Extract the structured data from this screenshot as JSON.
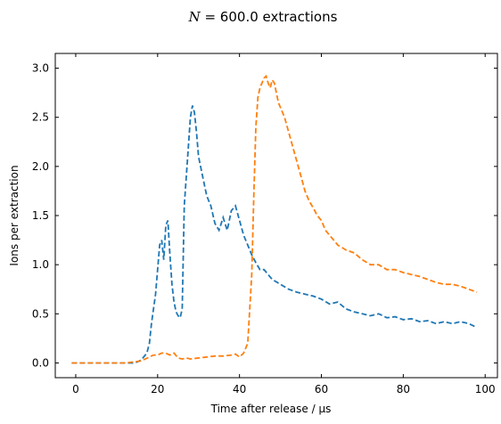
{
  "chart_data": {
    "type": "line",
    "title_math": "N",
    "title_rest": " = 600.0 extractions",
    "xlabel": "Time after release / µs",
    "ylabel": "Ions per extraction",
    "xlim": [
      -5,
      103
    ],
    "ylim": [
      -0.15,
      3.15
    ],
    "x_ticks": [
      0,
      20,
      40,
      60,
      80,
      100
    ],
    "y_ticks": [
      0.0,
      0.5,
      1.0,
      1.5,
      2.0,
      2.5,
      3.0
    ],
    "x_tick_labels": [
      "0",
      "20",
      "40",
      "60",
      "80",
      "100"
    ],
    "y_tick_labels": [
      "0.0",
      "0.5",
      "1.0",
      "1.5",
      "2.0",
      "2.5",
      "3.0"
    ],
    "series": [
      {
        "color": "#1f77b4",
        "style": "dashed",
        "x": [
          -1,
          2,
          4,
          6,
          8,
          10,
          12,
          14,
          15,
          16,
          17,
          17.5,
          18,
          18.5,
          19,
          19.5,
          20,
          20.5,
          21,
          21.5,
          22,
          22.5,
          23,
          23.5,
          24,
          24.5,
          25,
          25.5,
          26,
          26.5,
          27,
          27.5,
          28,
          28.5,
          29,
          29.5,
          30,
          31,
          32,
          33,
          34,
          35,
          36,
          37,
          38,
          39,
          40,
          41,
          42,
          43,
          44,
          45,
          46,
          48,
          50,
          52,
          54,
          56,
          58,
          60,
          62,
          64,
          66,
          68,
          70,
          72,
          74,
          76,
          78,
          80,
          82,
          84,
          86,
          88,
          90,
          92,
          94,
          96,
          98
        ],
        "y": [
          0,
          0,
          0,
          0,
          0,
          0,
          0,
          0,
          0.01,
          0.03,
          0.08,
          0.12,
          0.2,
          0.4,
          0.55,
          0.7,
          0.95,
          1.2,
          1.25,
          1.05,
          1.4,
          1.45,
          1.1,
          0.8,
          0.62,
          0.52,
          0.48,
          0.46,
          0.55,
          1.6,
          1.9,
          2.2,
          2.5,
          2.62,
          2.55,
          2.35,
          2.1,
          1.9,
          1.7,
          1.6,
          1.42,
          1.35,
          1.48,
          1.35,
          1.55,
          1.6,
          1.45,
          1.3,
          1.2,
          1.1,
          1.02,
          0.95,
          0.95,
          0.85,
          0.8,
          0.75,
          0.72,
          0.7,
          0.68,
          0.65,
          0.6,
          0.62,
          0.55,
          0.52,
          0.5,
          0.48,
          0.5,
          0.46,
          0.47,
          0.44,
          0.45,
          0.42,
          0.43,
          0.4,
          0.42,
          0.4,
          0.42,
          0.4,
          0.36
        ]
      },
      {
        "color": "#ff7f0e",
        "style": "dashed",
        "x": [
          -1,
          2,
          4,
          6,
          8,
          10,
          12,
          14,
          16,
          17,
          18,
          19,
          20,
          21,
          22,
          23,
          24,
          25,
          26,
          27,
          28,
          30,
          32,
          34,
          36,
          38,
          39,
          40,
          41,
          42,
          43,
          43.5,
          44,
          44.5,
          45,
          45.5,
          46,
          46.5,
          47,
          47.5,
          48,
          48.5,
          49,
          49.5,
          50,
          51,
          52,
          53,
          54,
          55,
          56,
          57,
          58,
          59,
          60,
          61,
          62,
          64,
          66,
          68,
          70,
          72,
          74,
          76,
          78,
          80,
          82,
          84,
          86,
          88,
          90,
          92,
          94,
          96,
          98
        ],
        "y": [
          0,
          0,
          0,
          0,
          0,
          0,
          0,
          0.01,
          0.02,
          0.04,
          0.06,
          0.08,
          0.08,
          0.1,
          0.1,
          0.08,
          0.1,
          0.05,
          0.04,
          0.05,
          0.04,
          0.05,
          0.06,
          0.07,
          0.07,
          0.08,
          0.09,
          0.06,
          0.1,
          0.2,
          0.9,
          1.7,
          2.4,
          2.7,
          2.8,
          2.85,
          2.9,
          2.92,
          2.85,
          2.8,
          2.88,
          2.85,
          2.75,
          2.65,
          2.6,
          2.5,
          2.35,
          2.2,
          2.05,
          1.9,
          1.75,
          1.65,
          1.58,
          1.5,
          1.45,
          1.35,
          1.3,
          1.2,
          1.15,
          1.12,
          1.05,
          1.0,
          1.0,
          0.95,
          0.95,
          0.92,
          0.9,
          0.88,
          0.85,
          0.82,
          0.8,
          0.8,
          0.78,
          0.75,
          0.72
        ]
      }
    ]
  }
}
